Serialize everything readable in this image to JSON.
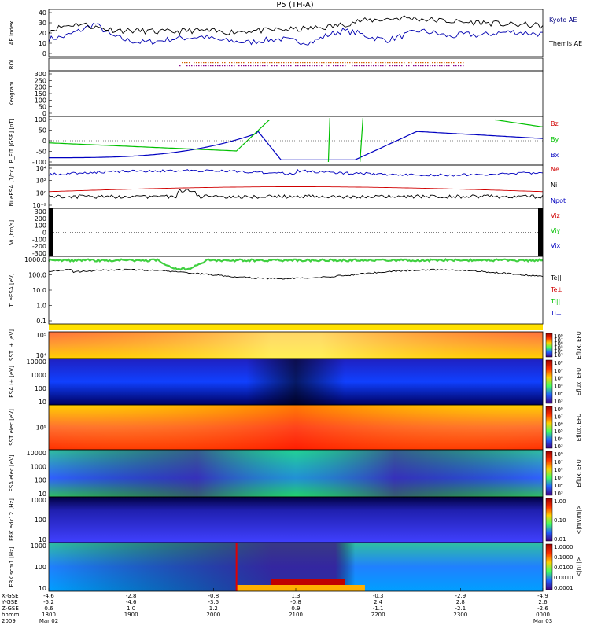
{
  "chart_data": {
    "type": "multi-panel time series",
    "title": "P5 (TH-A)",
    "panels": [
      {
        "id": "ae",
        "ylabel": "AE Index",
        "yticks": [
          "40",
          "30",
          "20",
          "10",
          "0"
        ],
        "series": [
          {
            "name": "Kyoto AE",
            "color": "#000080"
          },
          {
            "name": "Themis AE",
            "color": "#000000"
          }
        ],
        "kyoto": [
          15,
          17,
          22,
          28,
          18,
          14,
          12,
          13,
          15,
          16,
          17,
          14,
          13,
          12,
          14,
          15,
          13,
          12,
          18,
          22,
          20,
          16,
          14,
          18,
          22,
          20,
          17,
          19,
          18,
          20,
          21,
          20,
          19
        ],
        "themis": [
          22,
          26,
          28,
          25,
          23,
          22,
          22,
          21,
          21,
          22,
          22,
          21,
          21,
          22,
          22,
          23,
          23,
          24,
          25,
          27,
          30,
          31,
          32,
          33,
          32,
          31,
          30,
          29,
          29,
          28,
          27,
          27,
          26
        ]
      },
      {
        "id": "roi",
        "ylabel": "ROI"
      },
      {
        "id": "kp",
        "ylabel": "Keogram",
        "yticks": [
          "300",
          "250",
          "200",
          "150",
          "100",
          "50",
          "0"
        ]
      },
      {
        "id": "bfit",
        "ylabel": "B_FIT [GSE] [nT]",
        "yticks": [
          "100",
          "50",
          "0",
          "-50",
          "-100"
        ],
        "series": [
          {
            "name": "Bz",
            "color": "#d00000"
          },
          {
            "name": "By",
            "color": "#00c000"
          },
          {
            "name": "Bx",
            "color": "#0000c0"
          }
        ]
      },
      {
        "id": "n",
        "ylabel": "Ni eESA [1/cc]",
        "yticks": [
          "10⁴",
          "10²",
          "10⁰",
          "10⁻²"
        ],
        "series": [
          {
            "name": "Ne",
            "color": "#d00000"
          },
          {
            "name": "Ni",
            "color": "#000000"
          },
          {
            "name": "Npot",
            "color": "#0000c0"
          }
        ]
      },
      {
        "id": "v",
        "ylabel": "Vi [km/s]",
        "yticks": [
          "300",
          "200",
          "100",
          "0",
          "-100",
          "-200",
          "-300"
        ],
        "series": [
          {
            "name": "Viz",
            "color": "#d00000"
          },
          {
            "name": "Viy",
            "color": "#00c000"
          },
          {
            "name": "Vix",
            "color": "#0000c0"
          }
        ]
      },
      {
        "id": "t",
        "ylabel": "Ti eESA [eV]",
        "yticks": [
          "1000.0",
          "100.0",
          "10.0",
          "1.0",
          "0.1"
        ],
        "series": [
          {
            "name": "Te||",
            "color": "#000000"
          },
          {
            "name": "Te⊥",
            "color": "#d00000"
          },
          {
            "name": "Ti||",
            "color": "#00c000"
          },
          {
            "name": "Ti⊥",
            "color": "#0000c0"
          }
        ]
      },
      {
        "id": "sst_i",
        "ylabel": "SST i+ [eV]",
        "yticks": [
          "10⁵",
          "10⁴"
        ],
        "zlabel": "Eflux, EFU",
        "zticks": [
          "10⁸",
          "10⁷",
          "10⁶",
          "10⁵",
          "10⁴",
          "10³"
        ]
      },
      {
        "id": "esa_i",
        "ylabel": "ESA i+ [eV]",
        "yticks": [
          "10000",
          "1000",
          "100",
          "10"
        ],
        "zlabel": "Eflux, EFU",
        "zticks": [
          "10⁸",
          "10⁷",
          "10⁶",
          "10⁵",
          "10⁴",
          "10³"
        ]
      },
      {
        "id": "sst_e",
        "ylabel": "SST elec [eV]",
        "yticks": [
          "10⁵"
        ],
        "zlabel": "Eflux, EFU",
        "zticks": [
          "10⁸",
          "10⁷",
          "10⁶",
          "10⁵",
          "10⁴",
          "10³"
        ]
      },
      {
        "id": "esa_e",
        "ylabel": "ESA elec [eV]",
        "yticks": [
          "10000",
          "1000",
          "100",
          "10"
        ],
        "zlabel": "Eflux, EFU",
        "zticks": [
          "10⁸",
          "10⁷",
          "10⁶",
          "10⁵",
          "10⁴",
          "10³"
        ]
      },
      {
        "id": "fbk_e",
        "ylabel": "FBK edc12 [Hz]",
        "yticks": [
          "1000",
          "100",
          "10"
        ],
        "zlabel": "<|mV/m|>",
        "zticks": [
          "1.00",
          "0.10",
          "0.01"
        ]
      },
      {
        "id": "fbk_b",
        "ylabel": "FBK scm1 [Hz]",
        "yticks": [
          "1000",
          "100",
          "10"
        ],
        "zlabel": "<|nT|>",
        "zticks": [
          "1.0000",
          "0.1000",
          "0.0100",
          "0.0010",
          "0.0001"
        ]
      }
    ],
    "x_axis": {
      "row_labels": [
        "X-GSE",
        "Y-GSE",
        "Z-GSE",
        "hhmm",
        "2009"
      ],
      "ticks": [
        {
          "vals": [
            "-4.6",
            "-5.2",
            "0.6",
            "1800",
            "Mar 02"
          ]
        },
        {
          "vals": [
            "-2.8",
            "-4.6",
            "1.0",
            "1900",
            ""
          ]
        },
        {
          "vals": [
            "-0.8",
            "-3.5",
            "1.2",
            "2000",
            ""
          ]
        },
        {
          "vals": [
            "1.3",
            "-0.8",
            "0.9",
            "2100",
            ""
          ]
        },
        {
          "vals": [
            "-0.3",
            "2.4",
            "-1.1",
            "2200",
            ""
          ]
        },
        {
          "vals": [
            "-2.9",
            "2.8",
            "-2.1",
            "2300",
            ""
          ]
        },
        {
          "vals": [
            "-4.9",
            "2.6",
            "-2.6",
            "0000",
            "Mar 03"
          ]
        }
      ]
    }
  }
}
